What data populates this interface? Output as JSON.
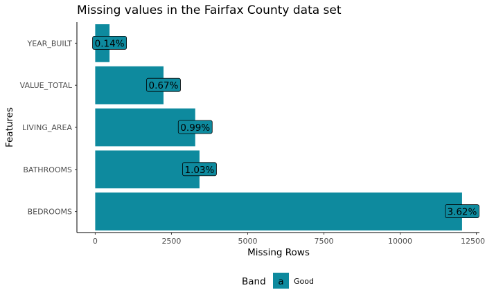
{
  "chart_data": {
    "type": "bar",
    "orientation": "horizontal",
    "title": "Missing values in the Fairfax County data set",
    "xlabel": "Missing Rows",
    "ylabel": "Features",
    "xlim": [
      -600,
      12600
    ],
    "x_ticks": [
      0,
      2500,
      5000,
      7500,
      10000,
      12500
    ],
    "x_tick_labels": [
      "0",
      "2500",
      "5000",
      "7500",
      "10000",
      "12500"
    ],
    "categories": [
      "YEAR_BUILT",
      "VALUE_TOTAL",
      "LIVING_AREA",
      "BATHROOMS",
      "BEDROOMS"
    ],
    "values": [
      470,
      2240,
      3280,
      3420,
      12030
    ],
    "data_labels": [
      "0.14%",
      "0.67%",
      "0.99%",
      "1.03%",
      "3.62%"
    ],
    "bar_color": "#0e8a9e",
    "grid": false,
    "legend": {
      "placement": "bottom",
      "title": "Band",
      "key_label": "a",
      "entries": [
        "Good"
      ]
    }
  }
}
